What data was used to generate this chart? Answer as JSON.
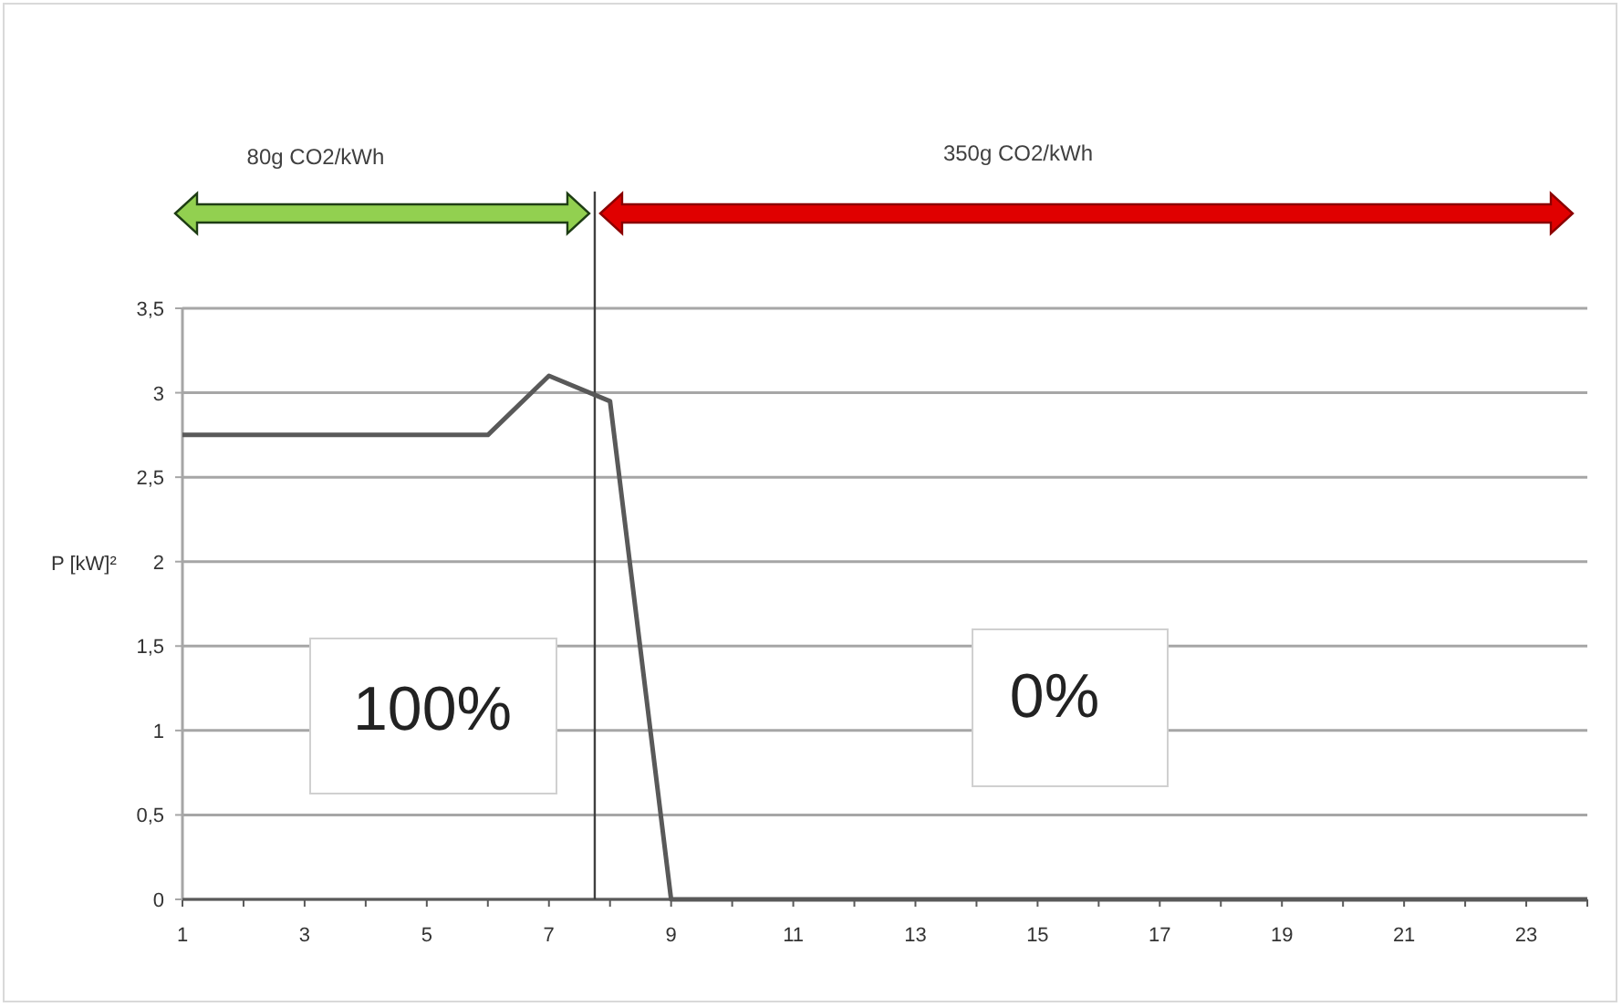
{
  "chart_data": {
    "type": "line",
    "ylabel": "P [kW]²",
    "x": [
      1,
      2,
      3,
      4,
      5,
      6,
      7,
      8,
      9,
      10,
      11,
      12,
      13,
      14,
      15,
      16,
      17,
      18,
      19,
      20,
      21,
      22,
      23,
      24
    ],
    "series": [
      {
        "color": "#595959",
        "values": [
          2.75,
          2.75,
          2.75,
          2.75,
          2.75,
          2.75,
          3.1,
          2.95,
          0,
          0,
          0,
          0,
          0,
          0,
          0,
          0,
          0,
          0,
          0,
          0,
          0,
          0,
          0,
          0
        ]
      }
    ],
    "xlim": [
      1,
      24
    ],
    "xticks": [
      1,
      {
        "value": 2,
        "label": null
      },
      3,
      {
        "value": 4,
        "label": null
      },
      5,
      {
        "value": 6,
        "label": null
      },
      7,
      {
        "value": 8,
        "label": null
      },
      9,
      {
        "value": 10,
        "label": null
      },
      11,
      {
        "value": 12,
        "label": null
      },
      13,
      {
        "value": 14,
        "label": null
      },
      15,
      {
        "value": 16,
        "label": null
      },
      17,
      {
        "value": 18,
        "label": null
      },
      19,
      {
        "value": 20,
        "label": null
      },
      21,
      {
        "value": 22,
        "label": null
      },
      23,
      {
        "value": 24,
        "label": null
      }
    ],
    "ylim": [
      0,
      3.5
    ],
    "yticks": [
      0,
      {
        "value": 0.5,
        "label": "0,5"
      },
      1,
      {
        "value": 1.5,
        "label": "1,5"
      },
      2,
      {
        "value": 2.5,
        "label": "2,5"
      },
      3,
      {
        "value": 3.5,
        "label": "3,5"
      }
    ],
    "grid": "y",
    "marker": "none",
    "ref_lines": [
      {
        "axis": "x",
        "value": 7.75,
        "color": "#404040"
      }
    ],
    "annotations": [
      "80g CO2/kWh",
      "350g CO2/kWh",
      "100%",
      "0%"
    ]
  }
}
